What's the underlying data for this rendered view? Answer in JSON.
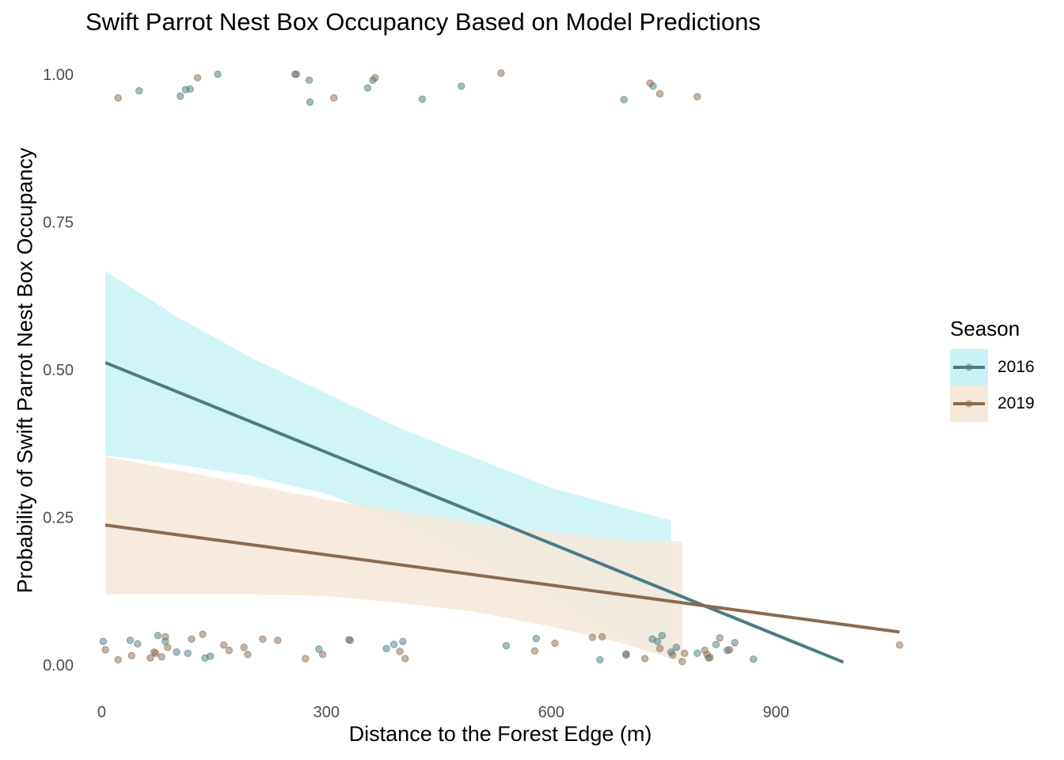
{
  "chart_data": {
    "type": "line",
    "title": "Swift Parrot Nest Box Occupancy Based on Model Predictions",
    "xlabel": "Distance to the Forest Edge (m)",
    "ylabel": "Probability of Swift Parrot Nest Box Occupancy",
    "xlim": [
      -30,
      1090
    ],
    "ylim": [
      -0.04,
      1.04
    ],
    "xticks": [
      0,
      300,
      600,
      900
    ],
    "xtick_labels": [
      "0",
      "300",
      "600",
      "900"
    ],
    "yticks": [
      0,
      0.25,
      0.5,
      0.75,
      1
    ],
    "ytick_labels": [
      "0.00",
      "0.25",
      "0.50",
      "0.75",
      "1.00"
    ],
    "grid": false,
    "legend": {
      "title": "Season",
      "position": "right"
    },
    "series": [
      {
        "name": "2016",
        "color": "#4a7c84",
        "ribbon_color": "#c9f2f5",
        "line": {
          "x": [
            5,
            990
          ],
          "y": [
            0.512,
            0.005
          ]
        },
        "ribbon": {
          "x": [
            5,
            100,
            200,
            300,
            400,
            500,
            600,
            700,
            760
          ],
          "upper": [
            0.667,
            0.59,
            0.52,
            0.46,
            0.4,
            0.35,
            0.3,
            0.265,
            0.245
          ],
          "lower": [
            0.355,
            0.34,
            0.32,
            0.29,
            0.24,
            0.18,
            0.115,
            0.045,
            0.012
          ]
        },
        "points": [
          {
            "x": 2,
            "y": 0.04
          },
          {
            "x": 38,
            "y": 0.042
          },
          {
            "x": 48,
            "y": 0.036
          },
          {
            "x": 75,
            "y": 0.05
          },
          {
            "x": 85,
            "y": 0.04
          },
          {
            "x": 100,
            "y": 0.022
          },
          {
            "x": 115,
            "y": 0.02
          },
          {
            "x": 138,
            "y": 0.012
          },
          {
            "x": 145,
            "y": 0.015
          },
          {
            "x": 290,
            "y": 0.027
          },
          {
            "x": 330,
            "y": 0.043
          },
          {
            "x": 380,
            "y": 0.028
          },
          {
            "x": 390,
            "y": 0.035
          },
          {
            "x": 402,
            "y": 0.04
          },
          {
            "x": 540,
            "y": 0.033
          },
          {
            "x": 580,
            "y": 0.045
          },
          {
            "x": 665,
            "y": 0.009
          },
          {
            "x": 700,
            "y": 0.019
          },
          {
            "x": 735,
            "y": 0.044
          },
          {
            "x": 742,
            "y": 0.04
          },
          {
            "x": 748,
            "y": 0.05
          },
          {
            "x": 760,
            "y": 0.022
          },
          {
            "x": 767,
            "y": 0.03
          },
          {
            "x": 795,
            "y": 0.02
          },
          {
            "x": 810,
            "y": 0.012
          },
          {
            "x": 820,
            "y": 0.035
          },
          {
            "x": 835,
            "y": 0.025
          },
          {
            "x": 845,
            "y": 0.038
          },
          {
            "x": 870,
            "y": 0.01
          },
          {
            "x": 50,
            "y": 0.972
          },
          {
            "x": 105,
            "y": 0.963
          },
          {
            "x": 112,
            "y": 0.974
          },
          {
            "x": 118,
            "y": 0.975
          },
          {
            "x": 155,
            "y": 1.0
          },
          {
            "x": 258,
            "y": 1.0
          },
          {
            "x": 277,
            "y": 0.99
          },
          {
            "x": 278,
            "y": 0.953
          },
          {
            "x": 355,
            "y": 0.977
          },
          {
            "x": 362,
            "y": 0.99
          },
          {
            "x": 428,
            "y": 0.958
          },
          {
            "x": 480,
            "y": 0.98
          },
          {
            "x": 697,
            "y": 0.957
          },
          {
            "x": 736,
            "y": 0.98
          }
        ]
      },
      {
        "name": "2019",
        "color": "#8b6a4f",
        "ribbon_color": "#f6e8da",
        "line": {
          "x": [
            5,
            1065
          ],
          "y": [
            0.237,
            0.056
          ]
        },
        "ribbon": {
          "x": [
            5,
            100,
            200,
            300,
            400,
            500,
            600,
            700,
            775
          ],
          "upper": [
            0.353,
            0.33,
            0.305,
            0.28,
            0.26,
            0.24,
            0.225,
            0.21,
            0.21
          ],
          "lower": [
            0.12,
            0.12,
            0.12,
            0.117,
            0.105,
            0.09,
            0.065,
            0.035,
            0.005
          ]
        },
        "points": [
          {
            "x": 5,
            "y": 0.026
          },
          {
            "x": 22,
            "y": 0.009
          },
          {
            "x": 40,
            "y": 0.016
          },
          {
            "x": 65,
            "y": 0.012
          },
          {
            "x": 70,
            "y": 0.022
          },
          {
            "x": 72,
            "y": 0.02
          },
          {
            "x": 80,
            "y": 0.014
          },
          {
            "x": 85,
            "y": 0.048
          },
          {
            "x": 88,
            "y": 0.03
          },
          {
            "x": 120,
            "y": 0.044
          },
          {
            "x": 135,
            "y": 0.052
          },
          {
            "x": 163,
            "y": 0.034
          },
          {
            "x": 170,
            "y": 0.025
          },
          {
            "x": 190,
            "y": 0.03
          },
          {
            "x": 195,
            "y": 0.018
          },
          {
            "x": 215,
            "y": 0.044
          },
          {
            "x": 235,
            "y": 0.042
          },
          {
            "x": 272,
            "y": 0.011
          },
          {
            "x": 295,
            "y": 0.018
          },
          {
            "x": 332,
            "y": 0.042
          },
          {
            "x": 398,
            "y": 0.023
          },
          {
            "x": 405,
            "y": 0.011
          },
          {
            "x": 578,
            "y": 0.024
          },
          {
            "x": 605,
            "y": 0.037
          },
          {
            "x": 655,
            "y": 0.047
          },
          {
            "x": 668,
            "y": 0.048
          },
          {
            "x": 700,
            "y": 0.017
          },
          {
            "x": 725,
            "y": 0.011
          },
          {
            "x": 745,
            "y": 0.028
          },
          {
            "x": 762,
            "y": 0.017
          },
          {
            "x": 775,
            "y": 0.006
          },
          {
            "x": 778,
            "y": 0.02
          },
          {
            "x": 805,
            "y": 0.025
          },
          {
            "x": 808,
            "y": 0.018
          },
          {
            "x": 812,
            "y": 0.013
          },
          {
            "x": 825,
            "y": 0.046
          },
          {
            "x": 838,
            "y": 0.026
          },
          {
            "x": 1065,
            "y": 0.034
          },
          {
            "x": 22,
            "y": 0.96
          },
          {
            "x": 128,
            "y": 0.994
          },
          {
            "x": 260,
            "y": 1.0
          },
          {
            "x": 310,
            "y": 0.96
          },
          {
            "x": 365,
            "y": 0.994
          },
          {
            "x": 533,
            "y": 1.002
          },
          {
            "x": 732,
            "y": 0.985
          },
          {
            "x": 745,
            "y": 0.967
          },
          {
            "x": 795,
            "y": 0.962
          }
        ]
      }
    ]
  }
}
